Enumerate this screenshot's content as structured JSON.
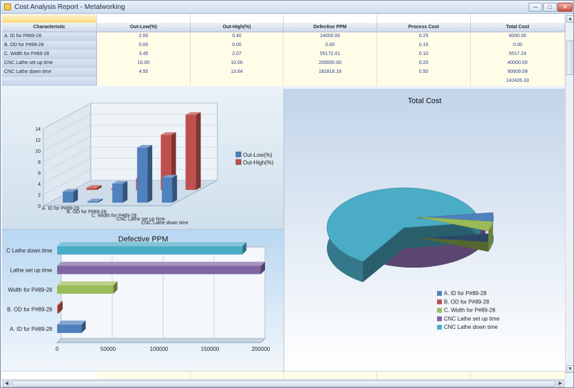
{
  "window": {
    "title": "Cost Analysis Report - Metalworking",
    "minimize": "─",
    "maximize": "□",
    "close": "✕"
  },
  "table": {
    "headers": [
      "Characteristic",
      "Out-Low(%)",
      "Out-High(%)",
      "Defective PPM",
      "Process Cost",
      "Total Cost"
    ],
    "rows": [
      {
        "label": "A. ID for P#89-28",
        "values": [
          "2.00",
          "0.40",
          "24000.00",
          "0.25",
          "6000.00"
        ]
      },
      {
        "label": "B. OD for P#89-28",
        "values": [
          "0.00",
          "0.00",
          "0.00",
          "0.15",
          "0.00"
        ]
      },
      {
        "label": "C. Width for P#89-28",
        "values": [
          "3.45",
          "2.07",
          "55172.41",
          "0.10",
          "5517.24"
        ]
      },
      {
        "label": "CNC Lathe set up time",
        "values": [
          "10.00",
          "10.00",
          "200000.00",
          "0.20",
          "40000.00"
        ]
      },
      {
        "label": "CNC Lathe down time",
        "values": [
          "4.55",
          "13.64",
          "181818.18",
          "0.50",
          "90909.09"
        ]
      }
    ],
    "total": {
      "label": "",
      "values": [
        "",
        "",
        "",
        "",
        "142426.33"
      ]
    }
  },
  "chart_data": [
    {
      "type": "bar",
      "title": "",
      "categories": [
        "A. ID for P#89-28",
        "B. OD for P#89-28",
        "C. Width for P#89-28",
        "CNC Lathe set up time",
        "CNC Lathe down time"
      ],
      "series": [
        {
          "name": "Out-Low(%)",
          "values": [
            2.0,
            0.0,
            3.45,
            10.0,
            4.55
          ],
          "color": "#4f81bd"
        },
        {
          "name": "Out-High(%)",
          "values": [
            0.4,
            0.0,
            2.07,
            10.0,
            13.64
          ],
          "color": "#c0504d"
        }
      ],
      "ylim": [
        0,
        14
      ],
      "yticks": [
        "0",
        "2",
        "4",
        "6",
        "8",
        "10",
        "12",
        "14"
      ],
      "legend": "right"
    },
    {
      "type": "bar",
      "orientation": "horizontal",
      "title": "Defective PPM",
      "categories": [
        "A. ID for P#89-28",
        "B. OD for P#89-28",
        "C. Width for P#89-28",
        "CNC Lathe set up time",
        "CNC Lathe down time"
      ],
      "visible_category_labels": [
        "A. ID for P#89-28",
        "B. OD for P#89-28",
        "Width for P#89-28",
        "Lathe set up time",
        "C Lathe down time"
      ],
      "values": [
        24000,
        0,
        55172.41,
        200000,
        181818.18
      ],
      "colors": [
        "#4f81bd",
        "#c0504d",
        "#9bbb59",
        "#8064a2",
        "#4bacc6"
      ],
      "xlim": [
        0,
        200000
      ],
      "xticks": [
        "0",
        "50000",
        "100000",
        "150000",
        "200000"
      ]
    },
    {
      "type": "pie",
      "title": "Total Cost",
      "categories": [
        "A. ID for P#89-28",
        "B. OD for P#89-28",
        "C. Width for P#89-28",
        "CNC Lathe set up time",
        "CNC Lathe down time"
      ],
      "values": [
        6000,
        0,
        5517.24,
        40000,
        90909.09
      ],
      "colors": [
        "#4f81bd",
        "#c0504d",
        "#9bbb59",
        "#8064a2",
        "#4bacc6"
      ],
      "legend": "bottom"
    }
  ]
}
